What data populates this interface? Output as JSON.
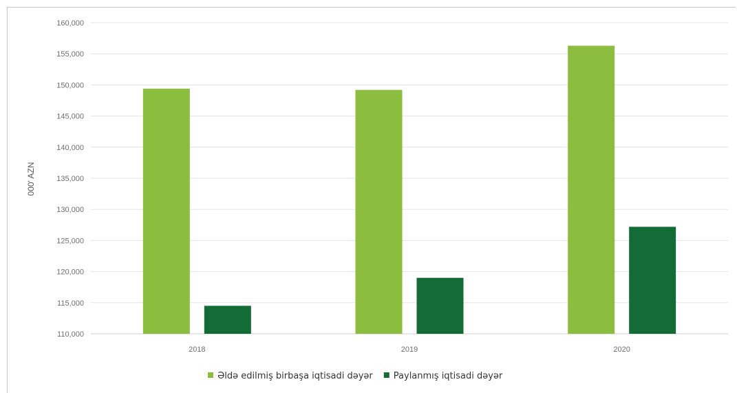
{
  "chart_data": {
    "type": "bar",
    "title": "",
    "xlabel": "",
    "ylabel": "000' AZN",
    "categories": [
      "2018",
      "2019",
      "2020"
    ],
    "ylim": [
      110000,
      160000
    ],
    "yticks": [
      "110,000",
      "115,000",
      "120,000",
      "125,000",
      "130,000",
      "135,000",
      "140,000",
      "145,000",
      "150,000",
      "155,000",
      "160,000"
    ],
    "grid": true,
    "legend_position": "bottom",
    "series": [
      {
        "name": "Əldə edilmiş birbaşa iqtisadi dəyər",
        "values": [
          149400,
          149200,
          156300
        ],
        "color": "#8bbd3f"
      },
      {
        "name": "Paylanmış iqtisadi dəyər",
        "values": [
          114500,
          119000,
          127200
        ],
        "color": "#136b35"
      }
    ]
  }
}
